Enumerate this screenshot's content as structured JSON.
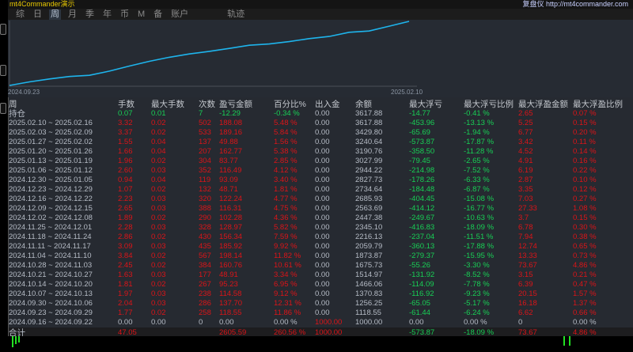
{
  "window": {
    "title_left": "mt4Commander演示",
    "title_right": "复盘仪 http://mt4commander.com"
  },
  "tabs": [
    {
      "label": "综",
      "active": false
    },
    {
      "label": "日",
      "active": false
    },
    {
      "label": "周",
      "active": true
    },
    {
      "label": "月",
      "active": false
    },
    {
      "label": "季",
      "active": false
    },
    {
      "label": "年",
      "active": false
    },
    {
      "label": "币",
      "active": false
    },
    {
      "label": "M",
      "active": false
    },
    {
      "label": "备",
      "active": false
    },
    {
      "label": "账户",
      "active": false
    },
    {
      "label": "轨迹",
      "active": false
    }
  ],
  "equity_chart": {
    "start_label": "2024.09.23",
    "end_label": "2025.02.10",
    "line_color": "#1eb4ec"
  },
  "colors": {
    "profit": "#dc1418",
    "loss": "#18cf55",
    "neutral": "#b6bcc6"
  },
  "table": {
    "headers": [
      "周",
      "手数",
      "最大手数",
      "次数",
      "盈亏金额",
      "百分比%",
      "出入金",
      "余额",
      "最大浮亏",
      "最大浮亏比例",
      "最大浮盈金额",
      "最大浮盈比例"
    ],
    "holding": [
      "持仓",
      "0.07",
      "0.01",
      "7",
      "-12.29",
      "-0.34 %",
      "0.00",
      "3617.88",
      "-14.77",
      "-0.41 %",
      "2.65",
      "0.07 %"
    ],
    "rows": [
      [
        "2025.02.10 ~ 2025.02.16",
        "3.32",
        "0.02",
        "502",
        "188.08",
        "5.48 %",
        "0.00",
        "3617.88",
        "-453.96",
        "-13.13 %",
        "5.25",
        "0.15 %"
      ],
      [
        "2025.02.03 ~ 2025.02.09",
        "3.37",
        "0.02",
        "533",
        "189.16",
        "5.84 %",
        "0.00",
        "3429.80",
        "-65.69",
        "-1.94 %",
        "6.77",
        "0.20 %"
      ],
      [
        "2025.01.27 ~ 2025.02.02",
        "1.55",
        "0.04",
        "137",
        "49.88",
        "1.56 %",
        "0.00",
        "3240.64",
        "-573.87",
        "-17.87 %",
        "3.42",
        "0.11 %"
      ],
      [
        "2025.01.20 ~ 2025.01.26",
        "1.66",
        "0.04",
        "207",
        "162.77",
        "5.38 %",
        "0.00",
        "3190.76",
        "-358.50",
        "-11.28 %",
        "4.52",
        "0.14 %"
      ],
      [
        "2025.01.13 ~ 2025.01.19",
        "1.96",
        "0.02",
        "304",
        "83.77",
        "2.85 %",
        "0.00",
        "3027.99",
        "-79.45",
        "-2.65 %",
        "4.91",
        "0.16 %"
      ],
      [
        "2025.01.06 ~ 2025.01.12",
        "2.60",
        "0.03",
        "352",
        "116.49",
        "4.12 %",
        "0.00",
        "2944.22",
        "-214.98",
        "-7.52 %",
        "6.19",
        "0.22 %"
      ],
      [
        "2024.12.30 ~ 2025.01.05",
        "0.94",
        "0.04",
        "119",
        "93.09",
        "3.40 %",
        "0.00",
        "2827.73",
        "-178.26",
        "-6.33 %",
        "2.87",
        "0.10 %"
      ],
      [
        "2024.12.23 ~ 2024.12.29",
        "1.07",
        "0.02",
        "132",
        "48.71",
        "1.81 %",
        "0.00",
        "2734.64",
        "-184.48",
        "-6.87 %",
        "3.35",
        "0.12 %"
      ],
      [
        "2024.12.16 ~ 2024.12.22",
        "2.23",
        "0.03",
        "320",
        "122.24",
        "4.77 %",
        "0.00",
        "2685.93",
        "-404.45",
        "-15.08 %",
        "7.03",
        "0.27 %"
      ],
      [
        "2024.12.09 ~ 2024.12.15",
        "2.65",
        "0.03",
        "388",
        "116.31",
        "4.75 %",
        "0.00",
        "2563.69",
        "-414.12",
        "-16.77 %",
        "27.33",
        "1.08 %"
      ],
      [
        "2024.12.02 ~ 2024.12.08",
        "1.89",
        "0.02",
        "290",
        "102.28",
        "4.36 %",
        "0.00",
        "2447.38",
        "-249.67",
        "-10.63 %",
        "3.7",
        "0.15 %"
      ],
      [
        "2024.11.25 ~ 2024.12.01",
        "2.28",
        "0.03",
        "328",
        "128.97",
        "5.82 %",
        "0.00",
        "2345.10",
        "-416.83",
        "-18.09 %",
        "6.78",
        "0.30 %"
      ],
      [
        "2024.11.18 ~ 2024.11.24",
        "2.86",
        "0.02",
        "430",
        "156.34",
        "7.59 %",
        "0.00",
        "2216.13",
        "-237.04",
        "-11.51 %",
        "7.94",
        "0.38 %"
      ],
      [
        "2024.11.11 ~ 2024.11.17",
        "3.09",
        "0.03",
        "435",
        "185.92",
        "9.92 %",
        "0.00",
        "2059.79",
        "-360.13",
        "-17.88 %",
        "12.74",
        "0.65 %"
      ],
      [
        "2024.11.04 ~ 2024.11.10",
        "3.84",
        "0.02",
        "567",
        "198.14",
        "11.82 %",
        "0.00",
        "1873.87",
        "-279.37",
        "-15.95 %",
        "13.33",
        "0.73 %"
      ],
      [
        "2024.10.28 ~ 2024.11.03",
        "2.45",
        "0.02",
        "384",
        "160.76",
        "10.61 %",
        "0.00",
        "1675.73",
        "-55.26",
        "-3.30 %",
        "73.67",
        "4.86 %"
      ],
      [
        "2024.10.21 ~ 2024.10.27",
        "1.63",
        "0.03",
        "177",
        "48.91",
        "3.34 %",
        "0.00",
        "1514.97",
        "-131.92",
        "-8.52 %",
        "3.15",
        "0.21 %"
      ],
      [
        "2024.10.14 ~ 2024.10.20",
        "1.81",
        "0.02",
        "267",
        "95.23",
        "6.95 %",
        "0.00",
        "1466.06",
        "-114.09",
        "-7.78 %",
        "6.39",
        "0.47 %"
      ],
      [
        "2024.10.07 ~ 2024.10.13",
        "1.97",
        "0.03",
        "238",
        "114.58",
        "9.12 %",
        "0.00",
        "1370.83",
        "-116.92",
        "-9.23 %",
        "20.15",
        "1.57 %"
      ],
      [
        "2024.09.30 ~ 2024.10.06",
        "2.04",
        "0.03",
        "286",
        "137.70",
        "12.31 %",
        "0.00",
        "1256.25",
        "-65.05",
        "-5.17 %",
        "16.18",
        "1.37 %"
      ],
      [
        "2024.09.23 ~ 2024.09.29",
        "1.77",
        "0.02",
        "258",
        "118.55",
        "11.86 %",
        "0.00",
        "1118.55",
        "-61.44",
        "-6.24 %",
        "6.62",
        "0.66 %"
      ],
      [
        "2024.09.16 ~ 2024.09.22",
        "0.00",
        "0.00",
        "0",
        "0.00",
        "0.00 %",
        "1000.00",
        "1000.00",
        "0.00",
        "0.00 %",
        "0",
        "0.00 %"
      ]
    ],
    "total": [
      "合计",
      "47.05",
      "",
      "",
      "2605.59",
      "260.56 %",
      "1000.00",
      "",
      "-573.87",
      "-18.09 %",
      "73.67",
      "4.86 %"
    ]
  }
}
